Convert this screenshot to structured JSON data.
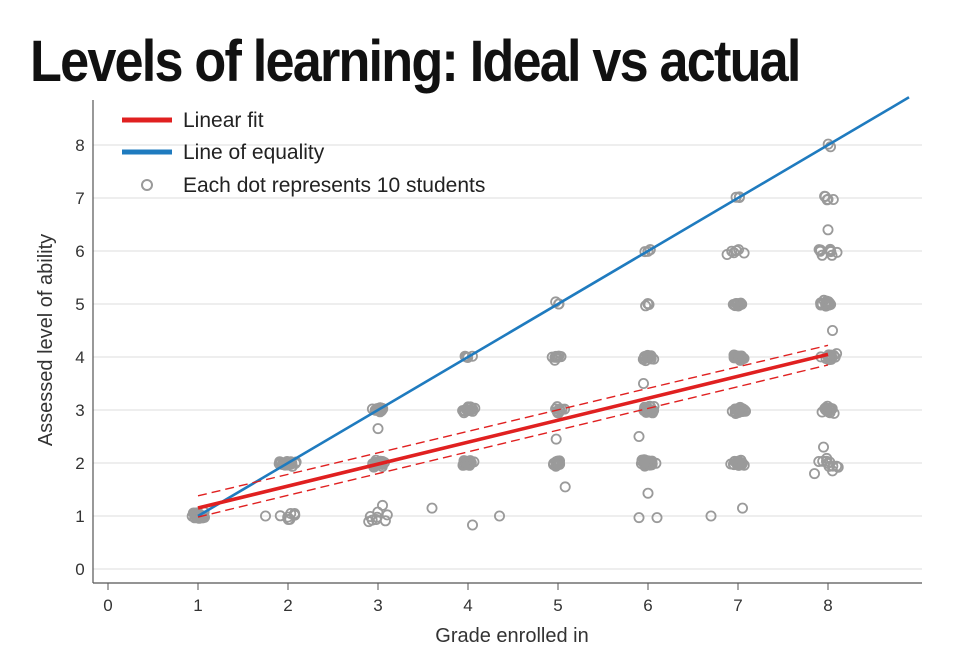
{
  "chart_data": {
    "type": "scatter",
    "title": "Levels of learning: Ideal vs actual",
    "xlabel": "Grade enrolled in",
    "ylabel": "Assessed level of ability",
    "xlim": [
      0,
      8.9
    ],
    "ylim": [
      -0.3,
      8.8
    ],
    "xticks": [
      0,
      1,
      2,
      3,
      4,
      5,
      6,
      7,
      8
    ],
    "yticks": [
      0,
      1,
      2,
      3,
      4,
      5,
      6,
      7,
      8
    ],
    "grid": "horizontal",
    "legend_position": "top-left",
    "legend": [
      {
        "label": "Linear fit",
        "kind": "line",
        "color": "#e02020"
      },
      {
        "label": "Line of equality",
        "kind": "line",
        "color": "#1f7bbf"
      },
      {
        "label": "Each dot represents 10 students",
        "kind": "marker",
        "color": "#9a9a9a"
      }
    ],
    "series": [
      {
        "kind": "line",
        "color": "#1f7bbf",
        "points": [
          [
            1,
            1
          ],
          [
            8.9,
            8.9
          ]
        ]
      },
      {
        "kind": "fit",
        "color": "#e02020",
        "points": [
          [
            1,
            1.15
          ],
          [
            8,
            4.05
          ]
        ],
        "ci_upper": [
          [
            1,
            1.38
          ],
          [
            8,
            4.22
          ]
        ],
        "ci_lower": [
          [
            1,
            0.98
          ],
          [
            8,
            3.85
          ]
        ]
      },
      {
        "kind": "points",
        "color": "#9a9a9a",
        "clusters": [
          {
            "x": 1,
            "y": 1,
            "n": 24,
            "spread": 0.09
          },
          {
            "x": 2,
            "y": 1,
            "n": 8,
            "spread": 0.16
          },
          {
            "x": 2,
            "y": 2,
            "n": 26,
            "spread": 0.1
          },
          {
            "x": 3,
            "y": 1,
            "n": 8,
            "spread": 0.12
          },
          {
            "x": 3,
            "y": 2,
            "n": 26,
            "spread": 0.09
          },
          {
            "x": 3,
            "y": 3,
            "n": 16,
            "spread": 0.07
          },
          {
            "x": 4,
            "y": 2,
            "n": 24,
            "spread": 0.08
          },
          {
            "x": 4,
            "y": 3,
            "n": 14,
            "spread": 0.08
          },
          {
            "x": 4,
            "y": 4,
            "n": 4,
            "spread": 0.07
          },
          {
            "x": 5,
            "y": 2,
            "n": 16,
            "spread": 0.08
          },
          {
            "x": 5,
            "y": 3,
            "n": 12,
            "spread": 0.07
          },
          {
            "x": 5,
            "y": 4,
            "n": 9,
            "spread": 0.07
          },
          {
            "x": 5,
            "y": 5,
            "n": 3,
            "spread": 0.06
          },
          {
            "x": 6,
            "y": 2,
            "n": 26,
            "spread": 0.09
          },
          {
            "x": 6,
            "y": 3,
            "n": 24,
            "spread": 0.09
          },
          {
            "x": 6,
            "y": 4,
            "n": 20,
            "spread": 0.08
          },
          {
            "x": 6,
            "y": 5,
            "n": 4,
            "spread": 0.06
          },
          {
            "x": 6,
            "y": 6,
            "n": 4,
            "spread": 0.05
          },
          {
            "x": 7,
            "y": 2,
            "n": 18,
            "spread": 0.08
          },
          {
            "x": 7,
            "y": 3,
            "n": 22,
            "spread": 0.08
          },
          {
            "x": 7,
            "y": 4,
            "n": 22,
            "spread": 0.08
          },
          {
            "x": 7,
            "y": 5,
            "n": 10,
            "spread": 0.06
          },
          {
            "x": 7,
            "y": 6,
            "n": 6,
            "spread": 0.12
          },
          {
            "x": 7,
            "y": 7,
            "n": 3,
            "spread": 0.05
          },
          {
            "x": 8,
            "y": 2,
            "n": 10,
            "spread": 0.15
          },
          {
            "x": 8,
            "y": 3,
            "n": 16,
            "spread": 0.08
          },
          {
            "x": 8,
            "y": 4,
            "n": 16,
            "spread": 0.08
          },
          {
            "x": 8,
            "y": 5,
            "n": 18,
            "spread": 0.08
          },
          {
            "x": 8,
            "y": 6,
            "n": 10,
            "spread": 0.1
          },
          {
            "x": 8,
            "y": 7,
            "n": 5,
            "spread": 0.07
          },
          {
            "x": 8,
            "y": 8,
            "n": 2,
            "spread": 0.05
          }
        ],
        "outliers": [
          [
            1.75,
            1.0
          ],
          [
            3.6,
            1.15
          ],
          [
            4.05,
            0.83
          ],
          [
            4.35,
            1.0
          ],
          [
            4.98,
            2.45
          ],
          [
            5.08,
            1.55
          ],
          [
            5.9,
            2.5
          ],
          [
            5.95,
            3.5
          ],
          [
            6.0,
            1.43
          ],
          [
            5.9,
            0.97
          ],
          [
            6.1,
            0.97
          ],
          [
            6.7,
            1.0
          ],
          [
            7.05,
            1.15
          ],
          [
            3.0,
            2.65
          ],
          [
            3.05,
            1.2
          ],
          [
            7.95,
            2.3
          ],
          [
            8.05,
            4.5
          ],
          [
            8.0,
            6.4
          ],
          [
            8.05,
            1.85
          ],
          [
            7.85,
            1.8
          ]
        ]
      }
    ]
  }
}
